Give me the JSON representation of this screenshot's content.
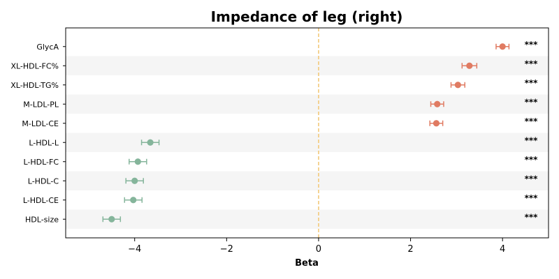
{
  "chart_data": {
    "type": "forest",
    "title": "Impedance of leg (right)",
    "xlabel": "Beta",
    "xlim": [
      -5.5,
      5.0
    ],
    "xticks": [
      -4,
      -2,
      0,
      2,
      4
    ],
    "xtick_labels": [
      "−4",
      "−2",
      "0",
      "2",
      "4"
    ],
    "reference_line": 0,
    "colors": {
      "positive": "#e07b62",
      "negative": "#85b59b",
      "ref_line": "#f3c97a",
      "band": "#f5f5f5"
    },
    "rows": [
      {
        "label": "GlycA",
        "beta": 4.0,
        "lo": 3.86,
        "hi": 4.14,
        "sig": "***"
      },
      {
        "label": "XL-HDL-FC%",
        "beta": 3.28,
        "lo": 3.12,
        "hi": 3.44,
        "sig": "***"
      },
      {
        "label": "XL-HDL-TG%",
        "beta": 3.03,
        "lo": 2.88,
        "hi": 3.18,
        "sig": "***"
      },
      {
        "label": "M-LDL-PL",
        "beta": 2.58,
        "lo": 2.44,
        "hi": 2.72,
        "sig": "***"
      },
      {
        "label": "M-LDL-CE",
        "beta": 2.56,
        "lo": 2.42,
        "hi": 2.7,
        "sig": "***"
      },
      {
        "label": "L-HDL-L",
        "beta": -3.66,
        "lo": -3.85,
        "hi": -3.47,
        "sig": "***"
      },
      {
        "label": "L-HDL-FC",
        "beta": -3.93,
        "lo": -4.12,
        "hi": -3.74,
        "sig": "***"
      },
      {
        "label": "L-HDL-C",
        "beta": -4.0,
        "lo": -4.19,
        "hi": -3.81,
        "sig": "***"
      },
      {
        "label": "L-HDL-CE",
        "beta": -4.03,
        "lo": -4.22,
        "hi": -3.84,
        "sig": "***"
      },
      {
        "label": "HDL-size",
        "beta": -4.5,
        "lo": -4.69,
        "hi": -4.31,
        "sig": "***"
      }
    ]
  }
}
